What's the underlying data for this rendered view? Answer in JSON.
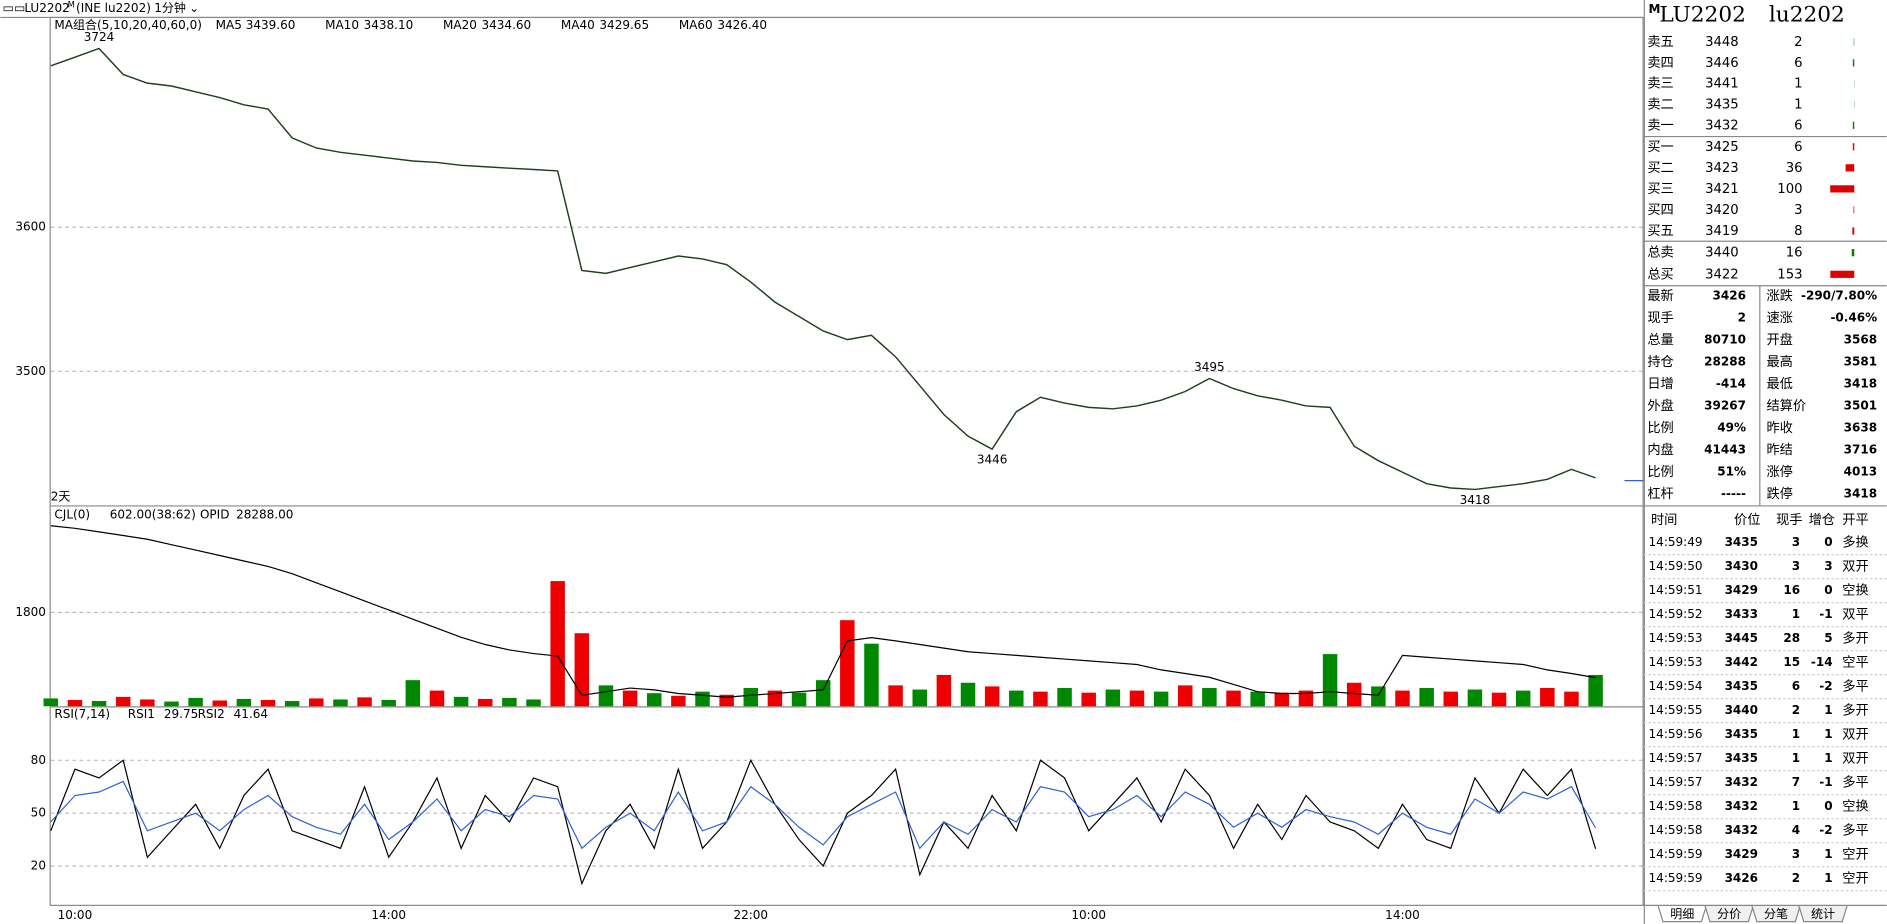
{
  "header": {
    "symbol": "LU2202",
    "flag": "M",
    "exchange": "(INE lu2202)",
    "period": "1分钟"
  },
  "chart_data": [
    {
      "type": "line",
      "title": "MA组合(5,10,20,40,60,0)",
      "ma_legend": [
        {
          "name": "MA5",
          "value": "3439.60",
          "color": "#000000"
        },
        {
          "name": "MA10",
          "value": "3438.10",
          "color": "#2f5fd0"
        },
        {
          "name": "MA20",
          "value": "3434.60",
          "color": "#e020e0"
        },
        {
          "name": "MA40",
          "value": "3429.65",
          "color": "#008000"
        },
        {
          "name": "MA60",
          "value": "3426.40",
          "color": "#808080"
        }
      ],
      "categories": [
        null,
        "10:00",
        null,
        null,
        null,
        null,
        null,
        null,
        null,
        null,
        null,
        null,
        null,
        null,
        "14:00",
        null,
        null,
        null,
        null,
        null,
        null,
        null,
        null,
        null,
        null,
        null,
        null,
        null,
        null,
        "22:00",
        null,
        null,
        null,
        null,
        null,
        null,
        null,
        null,
        null,
        null,
        null,
        null,
        null,
        "10:00",
        null,
        null,
        null,
        null,
        null,
        null,
        null,
        null,
        null,
        null,
        null,
        null,
        "14:00",
        null,
        null,
        null,
        null,
        null,
        null,
        null,
        null
      ],
      "values": [
        3712,
        3718,
        3724,
        3706,
        3700,
        3698,
        3694,
        3690,
        3685,
        3682,
        3662,
        3655,
        3652,
        3650,
        3648,
        3646,
        3645,
        3643,
        3642,
        3641,
        3640,
        3639,
        3570,
        3568,
        3572,
        3576,
        3580,
        3578,
        3574,
        3562,
        3548,
        3538,
        3528,
        3522,
        3525,
        3510,
        3490,
        3470,
        3455,
        3446,
        3472,
        3482,
        3478,
        3475,
        3474,
        3476,
        3480,
        3486,
        3495,
        3488,
        3483,
        3480,
        3476,
        3475,
        3448,
        3438,
        3430,
        3422,
        3419,
        3418,
        3420,
        3422,
        3425,
        3432,
        3426
      ],
      "color": "#1f3f1f",
      "ylim": [
        3407,
        3746
      ],
      "yticks": [
        3600,
        3500
      ],
      "grid": true,
      "annotations": [
        3724,
        3446,
        3495,
        3418
      ],
      "range_label": "2天"
    },
    {
      "type": "bar",
      "title": "CJL(0)",
      "value_text": "602.00(38:62)",
      "values": [
        150,
        120,
        100,
        180,
        130,
        90,
        160,
        110,
        140,
        120,
        100,
        150,
        130,
        170,
        120,
        500,
        300,
        180,
        140,
        160,
        130,
        2400,
        1400,
        400,
        300,
        250,
        200,
        280,
        220,
        350,
        300,
        260,
        500,
        1650,
        1200,
        400,
        320,
        600,
        450,
        380,
        300,
        280,
        350,
        260,
        320,
        300,
        280,
        400,
        350,
        300,
        280,
        260,
        300,
        1000,
        450,
        380,
        300,
        350,
        280,
        320,
        260,
        300,
        350,
        280,
        600
      ],
      "colors": [
        "#080",
        "#e00",
        "#080",
        "#e00",
        "#e00",
        "#080",
        "#080",
        "#e00",
        "#080",
        "#e00",
        "#080",
        "#e00",
        "#080",
        "#e00",
        "#080",
        "#080",
        "#e00",
        "#080",
        "#e00",
        "#080",
        "#080",
        "#e00",
        "#e00",
        "#080",
        "#e00",
        "#080",
        "#e00",
        "#080",
        "#e00",
        "#080",
        "#e00",
        "#080",
        "#080",
        "#e00",
        "#080",
        "#e00",
        "#080",
        "#e00",
        "#080",
        "#e00",
        "#080",
        "#e00",
        "#080",
        "#e00",
        "#080",
        "#e00",
        "#080",
        "#e00",
        "#080",
        "#e00",
        "#080",
        "#e00",
        "#e00",
        "#080",
        "#e00",
        "#080",
        "#e00",
        "#080",
        "#e00",
        "#080",
        "#e00",
        "#080",
        "#e00",
        "#e00",
        "#080"
      ],
      "ylim": [
        0,
        3830
      ],
      "yticks": [
        1800
      ],
      "grid": true,
      "series": [
        {
          "name": "OPID",
          "value_label": "28288.00",
          "color": "#000000",
          "axis": "y2",
          "values": [
            32470,
            32400,
            32300,
            32200,
            32100,
            31950,
            31800,
            31650,
            31500,
            31350,
            31150,
            30900,
            30650,
            30400,
            30150,
            29900,
            29650,
            29400,
            29200,
            29050,
            28950,
            28880,
            27800,
            27900,
            28000,
            27950,
            27850,
            27800,
            27750,
            27800,
            27850,
            27900,
            27950,
            29300,
            29390,
            29300,
            29200,
            29100,
            29000,
            28950,
            28900,
            28850,
            28800,
            28750,
            28700,
            28650,
            28500,
            28400,
            28300,
            28100,
            27900,
            27850,
            27850,
            27900,
            27850,
            27800,
            28900,
            28850,
            28800,
            28750,
            28700,
            28650,
            28500,
            28400,
            28288
          ]
        }
      ],
      "y2lim": [
        27500,
        33000
      ]
    },
    {
      "type": "line",
      "title": "RSI(7,14)",
      "series": [
        {
          "name": "RSI1",
          "value_label": "29.75",
          "color": "#000000",
          "values": [
            40,
            75,
            70,
            80,
            25,
            40,
            55,
            30,
            60,
            75,
            40,
            35,
            30,
            65,
            25,
            45,
            70,
            30,
            60,
            45,
            70,
            65,
            10,
            40,
            55,
            30,
            75,
            30,
            45,
            80,
            55,
            35,
            20,
            50,
            60,
            75,
            15,
            45,
            30,
            60,
            40,
            80,
            70,
            40,
            55,
            70,
            45,
            75,
            60,
            30,
            55,
            35,
            60,
            45,
            40,
            30,
            55,
            35,
            30,
            70,
            50,
            75,
            60,
            75,
            29.75
          ]
        },
        {
          "name": "RSI2",
          "value_label": "41.64",
          "color": "#3060d0",
          "values": [
            45,
            60,
            62,
            68,
            40,
            45,
            50,
            40,
            52,
            60,
            48,
            42,
            38,
            55,
            35,
            45,
            58,
            40,
            52,
            48,
            60,
            58,
            30,
            42,
            50,
            40,
            62,
            40,
            45,
            65,
            55,
            42,
            32,
            48,
            55,
            62,
            30,
            45,
            38,
            52,
            45,
            65,
            62,
            48,
            52,
            60,
            48,
            62,
            55,
            42,
            50,
            42,
            52,
            48,
            45,
            38,
            50,
            42,
            38,
            58,
            50,
            62,
            58,
            65,
            41.64
          ]
        }
      ],
      "ylim": [
        -2,
        110
      ],
      "yticks": [
        80,
        50,
        20
      ],
      "grid": true
    }
  ],
  "panel": {
    "flag": "M",
    "code": "LU2202",
    "code_lower": "lu2202"
  },
  "order_book": {
    "rows": [
      {
        "label": "卖五",
        "price": 3448,
        "qty": 2
      },
      {
        "label": "卖四",
        "price": 3446,
        "qty": 6
      },
      {
        "label": "卖三",
        "price": 3441,
        "qty": 1
      },
      {
        "label": "卖二",
        "price": 3435,
        "qty": 1
      },
      {
        "label": "卖一",
        "price": 3432,
        "qty": 6
      },
      {
        "label": "买一",
        "price": 3425,
        "qty": 6
      },
      {
        "label": "买二",
        "price": 3423,
        "qty": 36
      },
      {
        "label": "买三",
        "price": 3421,
        "qty": 100
      },
      {
        "label": "买四",
        "price": 3420,
        "qty": 3
      },
      {
        "label": "买五",
        "price": 3419,
        "qty": 8
      }
    ],
    "totals": [
      {
        "label": "总卖",
        "price": 3440,
        "qty": 16
      },
      {
        "label": "总买",
        "price": 3422,
        "qty": 153
      }
    ],
    "sell_color": "#e00000",
    "buy_color": "#008000"
  },
  "quote": {
    "left": [
      [
        "最新",
        "3426",
        "#006400"
      ],
      [
        "现手",
        "2",
        "#1a3a9a"
      ],
      [
        "总量",
        "80710",
        "#1a3a9a"
      ],
      [
        "持仓",
        "28288",
        "#1a3a9a"
      ],
      [
        "日增",
        "-414",
        "#1a3a9a"
      ],
      [
        "外盘",
        "39267",
        "#1a3a9a"
      ],
      [
        "比例",
        "49%",
        "#1a3a9a"
      ],
      [
        "内盘",
        "41443",
        "#1a3a9a"
      ],
      [
        "比例",
        "51%",
        "#1a3a9a"
      ],
      [
        "杠杆",
        "-----",
        "#1a3a9a"
      ]
    ],
    "right": [
      [
        "涨跌",
        "-290/7.80%",
        "#008000"
      ],
      [
        "速涨",
        "-0.46%",
        "#008000"
      ],
      [
        "开盘",
        "3568",
        "#008000"
      ],
      [
        "最高",
        "3581",
        "#008000"
      ],
      [
        "最低",
        "3418",
        "#008000"
      ],
      [
        "结算价",
        "3501",
        "#008000"
      ],
      [
        "昨收",
        "3638",
        "#000000"
      ],
      [
        "昨结",
        "3716",
        "#000000"
      ],
      [
        "涨停",
        "4013",
        "#e00000"
      ],
      [
        "跌停",
        "3418",
        "#008000"
      ]
    ]
  },
  "trades": {
    "headers": [
      "时间",
      "价位",
      "现手",
      "增仓",
      "开平"
    ],
    "rows": [
      [
        "14:59:49",
        "3435",
        "3",
        "0",
        "多换"
      ],
      [
        "14:59:50",
        "3430",
        "3",
        "3",
        "双开"
      ],
      [
        "14:59:51",
        "3429",
        "16",
        "0",
        "空换"
      ],
      [
        "14:59:52",
        "3433",
        "1",
        "-1",
        "双平"
      ],
      [
        "14:59:53",
        "3445",
        "28",
        "5",
        "多开"
      ],
      [
        "14:59:53",
        "3442",
        "15",
        "-14",
        "空平"
      ],
      [
        "14:59:54",
        "3435",
        "6",
        "-2",
        "多平"
      ],
      [
        "14:59:55",
        "3440",
        "2",
        "1",
        "多开"
      ],
      [
        "14:59:56",
        "3435",
        "1",
        "1",
        "双开"
      ],
      [
        "14:59:57",
        "3435",
        "1",
        "1",
        "双开"
      ],
      [
        "14:59:57",
        "3432",
        "7",
        "-1",
        "多平"
      ],
      [
        "14:59:58",
        "3432",
        "1",
        "0",
        "空换"
      ],
      [
        "14:59:58",
        "3432",
        "4",
        "-2",
        "多平"
      ],
      [
        "14:59:59",
        "3429",
        "3",
        "1",
        "空开"
      ],
      [
        "14:59:59",
        "3426",
        "2",
        "1",
        "空开"
      ]
    ],
    "qty_colors": [
      "#e00000",
      "#008000",
      "#008000",
      "#e00000",
      "#e00000",
      "#e00000",
      "#008000",
      "#e00000",
      "#008000",
      "#008000",
      "#008000",
      "#008000",
      "#008000",
      "#008000",
      "#008000"
    ]
  },
  "tabs": [
    "明细",
    "分价",
    "分笔",
    "统计"
  ]
}
